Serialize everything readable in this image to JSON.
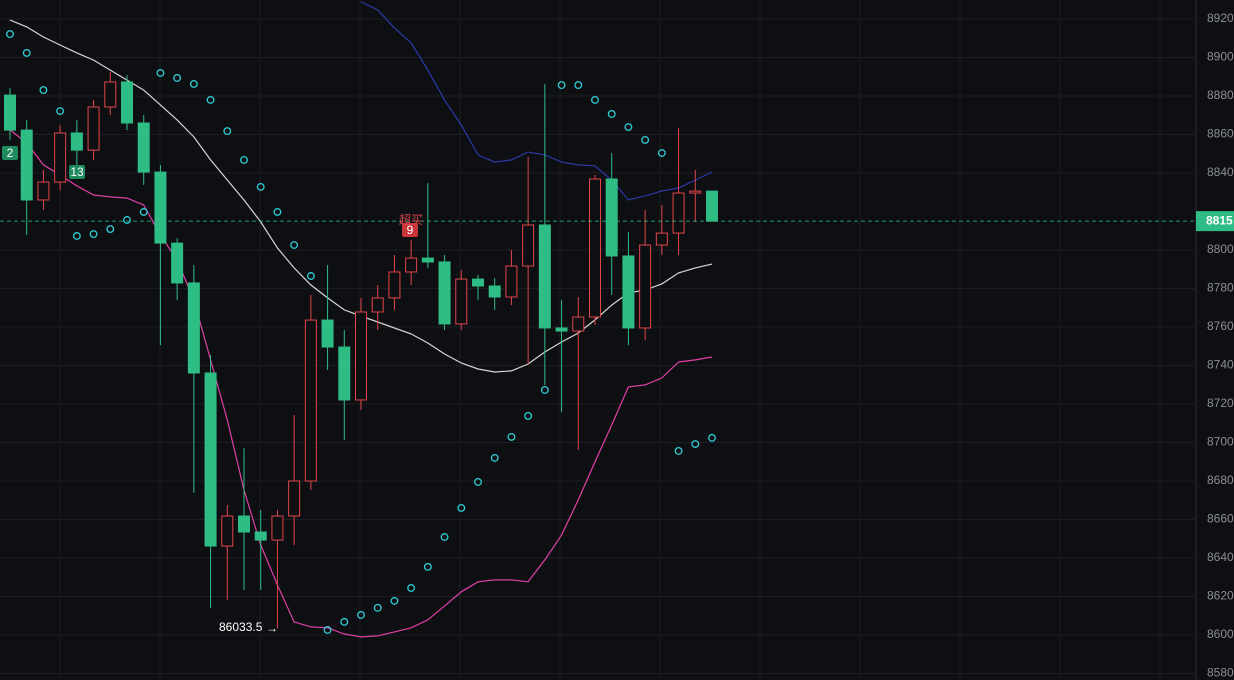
{
  "chart_data": {
    "type": "candlestick",
    "up_color": "#e0464b",
    "down_color": "#2ebd85",
    "grid": true,
    "ylim": [
      85766,
      89299
    ],
    "yticks": [
      {
        "value": 89200,
        "label": "8920"
      },
      {
        "value": 89000,
        "label": "8900"
      },
      {
        "value": 88800,
        "label": "8880"
      },
      {
        "value": 88600,
        "label": "8860"
      },
      {
        "value": 88400,
        "label": "8840"
      },
      {
        "value": 88000,
        "label": "8800"
      },
      {
        "value": 87800,
        "label": "8780"
      },
      {
        "value": 87600,
        "label": "8760"
      },
      {
        "value": 87400,
        "label": "8740"
      },
      {
        "value": 87200,
        "label": "8720"
      },
      {
        "value": 87000,
        "label": "8700"
      },
      {
        "value": 86800,
        "label": "8680"
      },
      {
        "value": 86600,
        "label": "8660"
      },
      {
        "value": 86400,
        "label": "8640"
      },
      {
        "value": 86200,
        "label": "8620"
      },
      {
        "value": 86000,
        "label": "8600"
      },
      {
        "value": 85800,
        "label": "8580"
      }
    ],
    "open": [
      88805,
      88623,
      88260,
      88353,
      88608,
      88519,
      88743,
      88873,
      88660,
      88405,
      88036,
      87829,
      87361,
      86462,
      86618,
      86535,
      86493,
      86618,
      86800,
      87636,
      87496,
      87221,
      87678,
      87751,
      87886,
      87958,
      87938,
      87616,
      87849,
      87813,
      87756,
      87917,
      88130,
      87595,
      87579,
      87652,
      88369,
      87969,
      87595,
      88026,
      88088,
      88296,
      88306
    ],
    "high": [
      88842,
      88675,
      88416,
      88649,
      88675,
      88779,
      88925,
      88909,
      88701,
      88442,
      88062,
      87922,
      87454,
      86675,
      86971,
      86649,
      86649,
      87143,
      87766,
      87922,
      87584,
      87751,
      87818,
      87974,
      88052,
      88348,
      87974,
      87896,
      87870,
      87854,
      88000,
      88483,
      88862,
      87740,
      87756,
      88390,
      88504,
      88093,
      88208,
      88234,
      88634,
      88416,
      88306
    ],
    "low": [
      88571,
      88078,
      88208,
      88312,
      88442,
      88467,
      88701,
      88623,
      88338,
      87506,
      87740,
      86738,
      86140,
      86182,
      86234,
      86234,
      86033.5,
      86467,
      86753,
      87377,
      87013,
      87169,
      87584,
      87688,
      87818,
      87906,
      87584,
      87584,
      87740,
      87688,
      87714,
      87403,
      87299,
      87158,
      86961,
      87610,
      87766,
      87506,
      87532,
      87974,
      87974,
      88145,
      88150
    ],
    "close": [
      88623,
      88260,
      88353,
      88608,
      88519,
      88743,
      88873,
      88660,
      88405,
      88036,
      87829,
      87361,
      86462,
      86618,
      86535,
      86493,
      86618,
      86800,
      87636,
      87496,
      87221,
      87678,
      87751,
      87886,
      87958,
      87938,
      87616,
      87849,
      87813,
      87756,
      87917,
      88130,
      87595,
      87579,
      87652,
      88369,
      87969,
      87595,
      88026,
      88088,
      88296,
      88306,
      88150
    ],
    "overlays": [
      {
        "color": "#d6d6d6",
        "values": [
          89195,
          89159,
          89107,
          89065,
          89024,
          88987,
          88935,
          88883,
          88831,
          88754,
          88676,
          88587,
          88468,
          88364,
          88260,
          88146,
          88011,
          87907,
          87818,
          87751,
          87689,
          87657,
          87626,
          87595,
          87564,
          87517,
          87460,
          87413,
          87382,
          87366,
          87372,
          87408,
          87470,
          87522,
          87569,
          87637,
          87714,
          87777,
          87792,
          87824,
          87881,
          87907,
          87927
        ]
      },
      {
        "color": "#2b3aa8",
        "values": [
          null,
          null,
          null,
          null,
          null,
          null,
          null,
          null,
          null,
          null,
          null,
          null,
          null,
          null,
          null,
          null,
          null,
          null,
          null,
          null,
          null,
          89289,
          89247,
          89154,
          89076,
          88935,
          88779,
          88650,
          88494,
          88457,
          88468,
          88509,
          88494,
          88457,
          88442,
          88437,
          88364,
          88260,
          88281,
          88307,
          88322,
          88364,
          88405
        ]
      },
      {
        "color": "#e040a8",
        "values": [
          88624,
          88556,
          88442,
          88390,
          88333,
          88286,
          88276,
          88270,
          88234,
          88078,
          87948,
          87740,
          87429,
          87117,
          86753,
          86468,
          86260,
          86068,
          86042,
          86037,
          86005,
          85990,
          85995,
          86016,
          86037,
          86078,
          86151,
          86224,
          86276,
          86286,
          86286,
          86276,
          86390,
          86520,
          86702,
          86899,
          87091,
          87289,
          87299,
          87335,
          87418,
          87429,
          87444
        ]
      }
    ],
    "sar": {
      "color": "#2fcfd6",
      "values": [
        89122,
        89024,
        88831,
        88722,
        88073,
        88083,
        88109,
        88156,
        88198,
        88920,
        88894,
        88863,
        88780,
        88618,
        88468,
        88328,
        88198,
        88026,
        87865,
        86026,
        86068,
        86104,
        86141,
        86177,
        86244,
        86354,
        86509,
        86660,
        86795,
        86920,
        87029,
        87138,
        87273,
        88857,
        88857,
        88780,
        88707,
        88639,
        88572,
        88504,
        86956,
        86992,
        87024
      ]
    },
    "last_price": {
      "value": 88150,
      "label": "8815"
    },
    "low_label": "86033.5",
    "markers": [
      "2",
      "13",
      "9"
    ],
    "signal_text": "超买"
  }
}
